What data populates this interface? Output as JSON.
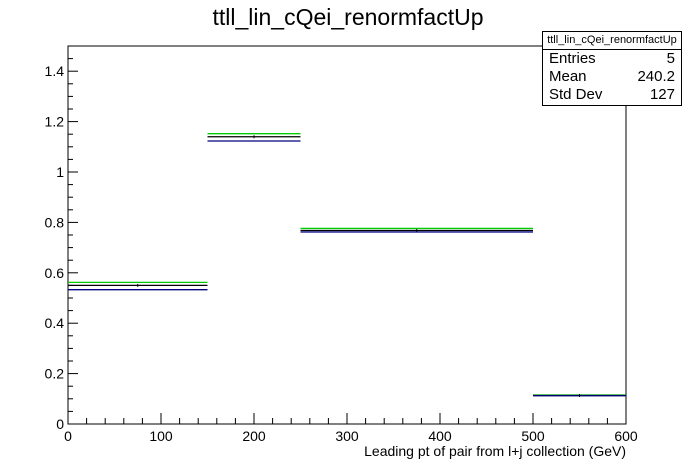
{
  "chart_data": {
    "type": "step",
    "title": "ttll_lin_cQei_renormfactUp",
    "xlabel": "Leading pt of pair from l+j collection (GeV)",
    "ylabel": "",
    "xlim": [
      0,
      600
    ],
    "ylim": [
      0,
      1.5
    ],
    "x_ticks": [
      0,
      100,
      200,
      300,
      400,
      500,
      600
    ],
    "y_ticks": [
      0,
      0.2,
      0.4,
      0.6,
      0.8,
      1,
      1.2,
      1.4
    ],
    "bin_edges": [
      0,
      150,
      250,
      500,
      600
    ],
    "series": [
      {
        "color": "#00cc00",
        "values": [
          0.562,
          1.152,
          0.776,
          0.115
        ]
      },
      {
        "color": "#000000",
        "values": [
          0.55,
          1.14,
          0.768,
          0.113
        ]
      },
      {
        "color": "#000080",
        "values": [
          0.533,
          1.123,
          0.762,
          0.112
        ]
      }
    ],
    "stats_box": {
      "title": "ttll_lin_cQei_renormfactUp",
      "entries_label": "Entries",
      "entries": "5",
      "mean_label": "Mean",
      "mean": "240.2",
      "stddev_label": "Std Dev",
      "stddev": "127"
    }
  }
}
